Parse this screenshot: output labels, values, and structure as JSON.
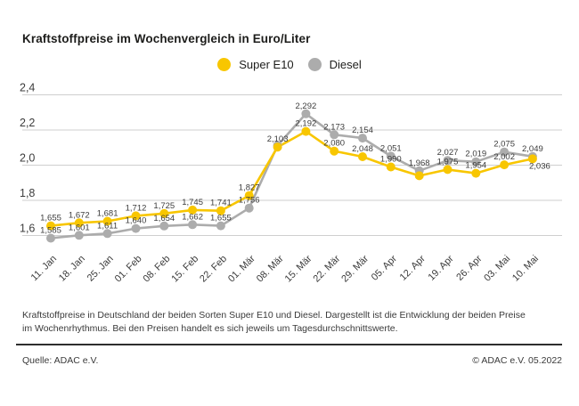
{
  "title": "Kraftstoffpreise im Wochenvergleich in Euro/Liter",
  "legend": {
    "super_label": "Super E10",
    "diesel_label": "Diesel"
  },
  "footer": {
    "description": "Kraftstoffpreise in Deutschland der beiden Sorten Super E10 und Diesel. Dargestellt ist die Entwicklung der beiden Preise im Wochenrhythmus. Bei den Preisen handelt es sich jeweils um Tagesdurchschnittswerte.",
    "source": "Quelle: ADAC e.V.",
    "copyright": "© ADAC e.V. 05.2022"
  },
  "colors": {
    "super": "#F8C600",
    "diesel": "#ACACAC",
    "grid": "#CFCFCF",
    "label_text": "#3C3C3C"
  },
  "chart_data": {
    "type": "line",
    "title": "Kraftstoffpreise im Wochenvergleich in Euro/Liter",
    "ylabel": "Euro/Liter",
    "ylim": [
      1.6,
      2.4
    ],
    "grid": "horizontal",
    "legend_position": "top-center",
    "yticks": [
      {
        "label": "2,4",
        "value": 2.4
      },
      {
        "label": "2,2",
        "value": 2.2
      },
      {
        "label": "2,0",
        "value": 2.0
      },
      {
        "label": "1,8",
        "value": 1.8
      },
      {
        "label": "1,6",
        "value": 1.6
      }
    ],
    "categories": [
      "11. Jan",
      "18. Jan",
      "25. Jan",
      "01. Feb",
      "08. Feb",
      "15. Feb",
      "22. Feb",
      "01. Mär",
      "08. Mär",
      "15. Mär",
      "22. Mär",
      "29. Mär",
      "05. Apr",
      "12. Apr",
      "19. Apr",
      "26. Apr",
      "03. Mai",
      "10. Mai"
    ],
    "series": [
      {
        "name": "Super E10",
        "color": "#F8C600",
        "values": [
          1.655,
          1.672,
          1.681,
          1.712,
          1.725,
          1.745,
          1.741,
          1.827,
          2.103,
          2.192,
          2.08,
          2.048,
          1.99,
          1.94,
          1.975,
          1.954,
          2.002,
          2.036
        ],
        "labels": [
          "1,655",
          "1,672",
          "1,681",
          "1,712",
          "1,725",
          "1,745",
          "1,741",
          "1,827",
          "2,103",
          "2,192",
          "2,080",
          "2,048",
          "1,990",
          null,
          "1,975",
          "1,954",
          "2,002",
          "2,036"
        ]
      },
      {
        "name": "Diesel",
        "color": "#ACACAC",
        "values": [
          1.585,
          1.601,
          1.611,
          1.64,
          1.654,
          1.662,
          1.655,
          1.756,
          2.112,
          2.292,
          2.173,
          2.154,
          2.051,
          1.968,
          2.027,
          2.019,
          2.075,
          2.049
        ],
        "labels": [
          "1,585",
          "1,601",
          "1,611",
          "1,640",
          "1,654",
          "1,662",
          "1,655",
          "1,756",
          null,
          "2,292",
          "2,173",
          "2,154",
          "2,051",
          "1,968",
          "2,027",
          "2,019",
          "2,075",
          "2,049"
        ]
      }
    ]
  }
}
